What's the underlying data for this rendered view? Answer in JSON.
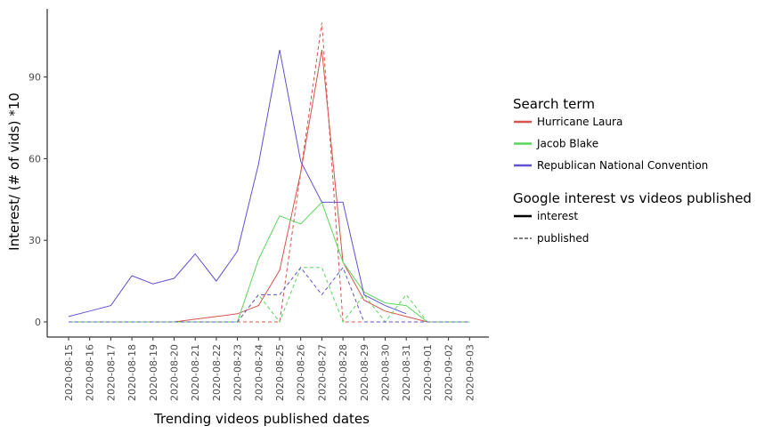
{
  "chart_data": {
    "type": "line",
    "xlabel": "Trending videos published dates",
    "ylabel": "Interest/ (# of vids) *10",
    "ylim": [
      -5.5,
      115
    ],
    "yticks": [
      0,
      30,
      60,
      90
    ],
    "categories": [
      "2020-08-15",
      "2020-08-16",
      "2020-08-17",
      "2020-08-18",
      "2020-08-19",
      "2020-08-20",
      "2020-08-21",
      "2020-08-22",
      "2020-08-23",
      "2020-08-24",
      "2020-08-25",
      "2020-08-26",
      "2020-08-27",
      "2020-08-28",
      "2020-08-29",
      "2020-08-30",
      "2020-08-31",
      "2020-09-01",
      "2020-09-02",
      "2020-09-03"
    ],
    "grid": false,
    "legend_placement": "right",
    "legends": [
      {
        "title": "Search term",
        "entries": [
          {
            "label": "Hurricane Laura",
            "color": "#d6544a"
          },
          {
            "label": "Jacob Blake",
            "color": "#5ad65a"
          },
          {
            "label": "Republican National Convention",
            "color": "#6152d0"
          }
        ]
      },
      {
        "title": "Google interest vs videos published",
        "entries": [
          {
            "label": "interest",
            "style": "solid"
          },
          {
            "label": "published",
            "style": "dashed"
          }
        ]
      }
    ],
    "series": [
      {
        "term": "Hurricane Laura",
        "kind": "interest",
        "color": "#d6544a",
        "values": [
          0,
          0,
          0,
          0,
          0,
          0,
          1,
          2,
          3,
          6,
          19,
          55,
          100,
          22,
          8,
          4,
          2,
          0,
          0,
          0
        ]
      },
      {
        "term": "Hurricane Laura",
        "kind": "published",
        "color": "#d6544a",
        "values": [
          0,
          0,
          0,
          0,
          0,
          0,
          0,
          0,
          0,
          0,
          0,
          55,
          110,
          0,
          0,
          0,
          0,
          0,
          0,
          0
        ]
      },
      {
        "term": "Jacob Blake",
        "kind": "interest",
        "color": "#5ad65a",
        "values": [
          0,
          0,
          0,
          0,
          0,
          0,
          0,
          0,
          0,
          23,
          39,
          36,
          44,
          22,
          11,
          7,
          6,
          0,
          0,
          0
        ]
      },
      {
        "term": "Jacob Blake",
        "kind": "published",
        "color": "#5ad65a",
        "values": [
          0,
          0,
          0,
          0,
          0,
          0,
          0,
          0,
          0,
          10,
          0,
          20,
          20,
          0,
          10,
          0,
          10,
          0,
          0,
          0
        ]
      },
      {
        "term": "Republican National Convention",
        "kind": "interest",
        "color": "#6152d0",
        "values": [
          2,
          4,
          6,
          17,
          14,
          16,
          25,
          15,
          26,
          58,
          100,
          59,
          44,
          44,
          10,
          6,
          3,
          null,
          null,
          null
        ]
      },
      {
        "term": "Republican National Convention",
        "kind": "published",
        "color": "#6152d0",
        "values": [
          0,
          0,
          0,
          0,
          0,
          0,
          0,
          0,
          0,
          10,
          10,
          20,
          10,
          20,
          0,
          0,
          0,
          0,
          0,
          0
        ]
      }
    ]
  }
}
